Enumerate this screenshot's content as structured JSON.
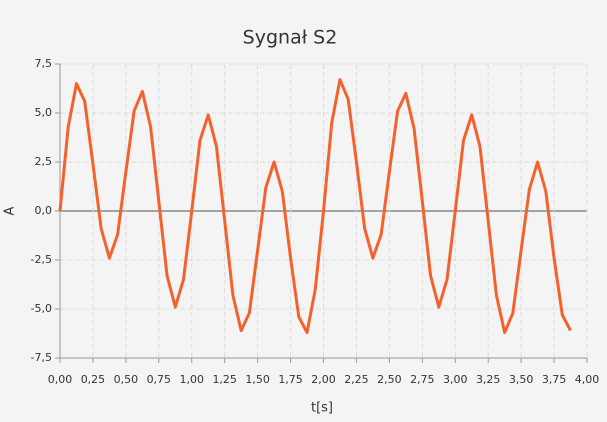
{
  "chart_data": {
    "type": "line",
    "title": "Sygnał S2",
    "x_label": "t[s]",
    "y_label": "A",
    "x": [
      0,
      0.0625,
      0.125,
      0.1875,
      0.25,
      0.3125,
      0.375,
      0.4375,
      0.5,
      0.5625,
      0.625,
      0.6875,
      0.75,
      0.8125,
      0.875,
      0.9375,
      1,
      1.0625,
      1.125,
      1.1875,
      1.25,
      1.3125,
      1.375,
      1.4375,
      1.5,
      1.5625,
      1.625,
      1.6875,
      1.75,
      1.8125,
      1.875,
      1.9375,
      2,
      2.0625,
      2.125,
      2.1875,
      2.25,
      2.3125,
      2.375,
      2.4375,
      2.5,
      2.5625,
      2.625,
      2.6875,
      2.75,
      2.8125,
      2.875,
      2.9375,
      3,
      3.0625,
      3.125,
      3.1875,
      3.25,
      3.3125,
      3.375,
      3.4375,
      3.5,
      3.5625,
      3.625,
      3.6875,
      3.75,
      3.8125,
      3.875
    ],
    "series": [
      {
        "name": "S2",
        "color": "#f3622d",
        "values": [
          0,
          4.3,
          6.5,
          5.6,
          2.4,
          -0.9,
          -2.4,
          -1.2,
          2.0,
          5.1,
          6.1,
          4.3,
          0.5,
          -3.3,
          -4.9,
          -3.5,
          0,
          3.6,
          4.9,
          3.3,
          -0.5,
          -4.3,
          -6.1,
          -5.2,
          -2.0,
          1.2,
          2.5,
          1.0,
          -2.4,
          -5.4,
          -6.2,
          -4.0,
          0,
          4.5,
          6.7,
          5.7,
          2.5,
          -0.9,
          -2.4,
          -1.2,
          2.0,
          5.1,
          6.0,
          4.2,
          0.5,
          -3.3,
          -4.9,
          -3.5,
          0,
          3.6,
          4.9,
          3.3,
          -0.5,
          -4.3,
          -6.2,
          -5.2,
          -2.0,
          1.1,
          2.5,
          1.0,
          -2.4,
          -5.3,
          -6.1
        ]
      }
    ],
    "xlim": [
      0,
      4
    ],
    "ylim": [
      -7.5,
      7.5
    ],
    "xticks": [
      {
        "value": 0,
        "label": "0,00"
      },
      {
        "value": 0.25,
        "label": "0,25"
      },
      {
        "value": 0.5,
        "label": "0,50"
      },
      {
        "value": 0.75,
        "label": "0,75"
      },
      {
        "value": 1,
        "label": "1,00"
      },
      {
        "value": 1.25,
        "label": "1,25"
      },
      {
        "value": 1.5,
        "label": "1,50"
      },
      {
        "value": 1.75,
        "label": "1,75"
      },
      {
        "value": 2,
        "label": "2,00"
      },
      {
        "value": 2.25,
        "label": "2,25"
      },
      {
        "value": 2.5,
        "label": "2,50"
      },
      {
        "value": 2.75,
        "label": "2,75"
      },
      {
        "value": 3,
        "label": "3,00"
      },
      {
        "value": 3.25,
        "label": "3,25"
      },
      {
        "value": 3.5,
        "label": "3,50"
      },
      {
        "value": 3.75,
        "label": "3,75"
      },
      {
        "value": 4,
        "label": "4,00"
      }
    ],
    "yticks": [
      {
        "value": -7.5,
        "label": "-7,5"
      },
      {
        "value": -5,
        "label": "-5,0"
      },
      {
        "value": -2.5,
        "label": "-2,5"
      },
      {
        "value": 0,
        "label": "0,0"
      },
      {
        "value": 2.5,
        "label": "2,5"
      },
      {
        "value": 5,
        "label": "5,0"
      },
      {
        "value": 7.5,
        "label": "7,5"
      }
    ],
    "grid": true
  }
}
